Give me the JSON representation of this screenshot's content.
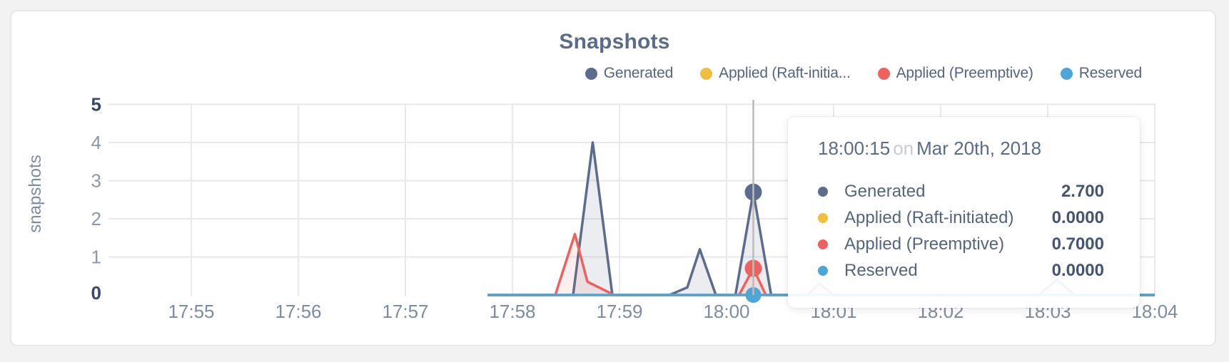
{
  "header": {
    "title": "Snapshots"
  },
  "legend": {
    "items": [
      {
        "label": "Generated",
        "color": "#5b6c8c"
      },
      {
        "label": "Applied (Raft-initia...",
        "color": "#f0bf3e"
      },
      {
        "label": "Applied (Preemptive)",
        "color": "#ee625d"
      },
      {
        "label": "Reserved",
        "color": "#4da5d8"
      }
    ]
  },
  "tooltip": {
    "time": "18:00:15",
    "conjunction": "on",
    "date": "Mar 20th, 2018",
    "rows": [
      {
        "label": "Generated",
        "value": "2.700",
        "color": "#5b6c8c"
      },
      {
        "label": "Applied (Raft-initiated)",
        "value": "0.0000",
        "color": "#f0bf3e"
      },
      {
        "label": "Applied (Preemptive)",
        "value": "0.7000",
        "color": "#ee625d"
      },
      {
        "label": "Reserved",
        "value": "0.0000",
        "color": "#4da5d8"
      }
    ]
  },
  "chart_data": {
    "type": "area",
    "title": "Snapshots",
    "xlabel": "",
    "ylabel": "snapshots",
    "ylim": [
      0,
      5
    ],
    "yticks": [
      0,
      1,
      2,
      3,
      4,
      5
    ],
    "x_ticks": [
      "17:55",
      "17:56",
      "17:57",
      "17:58",
      "17:59",
      "18:00",
      "18:01",
      "18:02",
      "18:03",
      "18:04"
    ],
    "x_range": [
      "17:55:00",
      "18:04:00"
    ],
    "grid": true,
    "legend_position": "top-right",
    "data_start": "17:57:46",
    "hover": {
      "time": "18:00:15",
      "date": "Mar 20th, 2018"
    },
    "colors": {
      "grid": "#e9e9e9",
      "hover_line": "#bcbcbc"
    },
    "series": [
      {
        "name": "Generated",
        "color": "#5b6c8c",
        "fill": "rgba(91,108,140,0.12)",
        "hover_value": 2.7,
        "dot_radius": 12,
        "points": [
          [
            "17:57:46",
            0
          ],
          [
            "17:58:34",
            0
          ],
          [
            "17:58:45",
            4.0
          ],
          [
            "17:58:56",
            0
          ],
          [
            "17:59:28",
            0
          ],
          [
            "17:59:38",
            0.2
          ],
          [
            "17:59:45",
            1.2
          ],
          [
            "17:59:54",
            0
          ],
          [
            "18:00:05",
            0
          ],
          [
            "18:00:15",
            2.7
          ],
          [
            "18:00:25",
            0
          ],
          [
            "18:00:45",
            0
          ],
          [
            "18:00:52",
            0.3
          ],
          [
            "18:01:00",
            0
          ],
          [
            "18:02:55",
            0
          ],
          [
            "18:03:05",
            0.4
          ],
          [
            "18:03:15",
            0
          ],
          [
            "18:04:00",
            0
          ]
        ]
      },
      {
        "name": "Applied (Raft-initiated)",
        "color": "#f0bf3e",
        "fill": "none",
        "hover_value": 0.0,
        "dot_radius": 9,
        "points": [
          [
            "17:57:46",
            0
          ],
          [
            "18:04:00",
            0
          ]
        ]
      },
      {
        "name": "Applied (Preemptive)",
        "color": "#ee625d",
        "fill": "rgba(238,98,93,0.10)",
        "hover_value": 0.7,
        "dot_radius": 12,
        "points": [
          [
            "17:57:46",
            0
          ],
          [
            "17:58:24",
            0
          ],
          [
            "17:58:35",
            1.6
          ],
          [
            "17:58:42",
            0.35
          ],
          [
            "17:58:57",
            0
          ],
          [
            "18:00:07",
            0
          ],
          [
            "18:00:15",
            0.7
          ],
          [
            "18:00:22",
            0
          ],
          [
            "18:04:00",
            0
          ]
        ]
      },
      {
        "name": "Reserved",
        "color": "#4da5d8",
        "fill": "none",
        "hover_value": 0.0,
        "dot_radius": 11,
        "points": [
          [
            "17:57:46",
            0
          ],
          [
            "18:04:00",
            0
          ]
        ]
      }
    ]
  }
}
